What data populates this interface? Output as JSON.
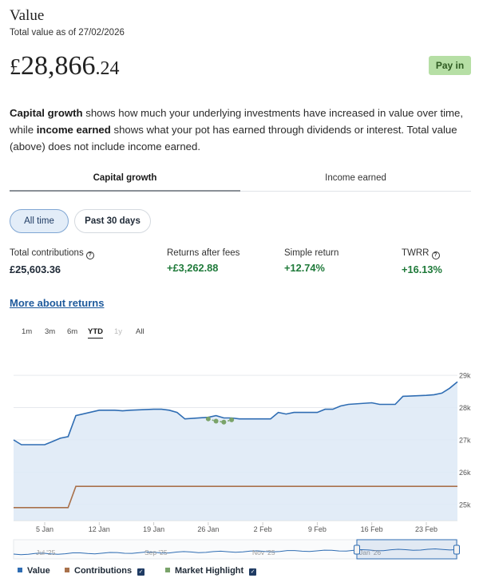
{
  "header": {
    "title": "Value",
    "subtitle": "Total value as of 27/02/2026",
    "currency": "£",
    "amount_main": "28,866",
    "amount_decimal": ".24",
    "pay_in_label": "Pay in"
  },
  "description": {
    "part1_bold": "Capital growth",
    "part1": " shows how much your underlying investments have increased in value over time, while ",
    "part2_bold": "income earned",
    "part2": " shows what your pot has earned through dividends or interest. Total value (above) does not include income earned."
  },
  "tabs": [
    {
      "label": "Capital growth",
      "active": true
    },
    {
      "label": "Income earned",
      "active": false
    }
  ],
  "periods": [
    {
      "label": "All time",
      "selected": true
    },
    {
      "label": "Past 30 days",
      "selected": false
    }
  ],
  "stats": [
    {
      "label": "Total contributions",
      "value": "£25,603.36",
      "info": true
    },
    {
      "label": "Returns after fees",
      "value": "+£3,262.88",
      "info": false
    },
    {
      "label": "Simple return",
      "value": "+12.74%",
      "info": false
    },
    {
      "label": "TWRR",
      "value": "+16.13%",
      "info": true
    }
  ],
  "more_link": "More about returns",
  "chart_ranges": [
    {
      "label": "1m",
      "state": "normal"
    },
    {
      "label": "3m",
      "state": "normal"
    },
    {
      "label": "6m",
      "state": "normal"
    },
    {
      "label": "YTD",
      "state": "selected"
    },
    {
      "label": "1y",
      "state": "disabled"
    },
    {
      "label": "All",
      "state": "normal"
    }
  ],
  "colors": {
    "value_line": "#2f6db3",
    "value_fill": "#dde9f6",
    "contributions_line": "#a9714b",
    "highlight": "#7aa36a"
  },
  "legend": [
    {
      "label": "Value",
      "color": "#2f6db3",
      "checkbox": false
    },
    {
      "label": "Contributions",
      "color": "#a9714b",
      "checkbox": true
    },
    {
      "label": "Market Highlight",
      "color": "#7aa36a",
      "checkbox": true
    }
  ],
  "chart_data": {
    "type": "line",
    "title": "",
    "xlabel": "",
    "ylabel": "",
    "x_ticks": [
      "5 Jan",
      "12 Jan",
      "19 Jan",
      "26 Jan",
      "2 Feb",
      "9 Feb",
      "16 Feb",
      "23 Feb"
    ],
    "y_ticks": [
      "25k",
      "26k",
      "27k",
      "28k",
      "29k"
    ],
    "ylim": [
      24500,
      29300
    ],
    "x_range": [
      "2026-01-01",
      "2026-02-27"
    ],
    "grid": true,
    "series": [
      {
        "name": "Value",
        "x": [
          "2026-01-01",
          "2026-01-02",
          "2026-01-05",
          "2026-01-06",
          "2026-01-07",
          "2026-01-08",
          "2026-01-09",
          "2026-01-12",
          "2026-01-13",
          "2026-01-14",
          "2026-01-15",
          "2026-01-16",
          "2026-01-19",
          "2026-01-20",
          "2026-01-21",
          "2026-01-22",
          "2026-01-23",
          "2026-01-26",
          "2026-01-27",
          "2026-01-28",
          "2026-01-29",
          "2026-01-30",
          "2026-02-02",
          "2026-02-03",
          "2026-02-04",
          "2026-02-05",
          "2026-02-06",
          "2026-02-09",
          "2026-02-10",
          "2026-02-11",
          "2026-02-12",
          "2026-02-13",
          "2026-02-16",
          "2026-02-17",
          "2026-02-18",
          "2026-02-19",
          "2026-02-20",
          "2026-02-23",
          "2026-02-24",
          "2026-02-25",
          "2026-02-26",
          "2026-02-27"
        ],
        "values": [
          27000,
          26850,
          26850,
          26950,
          27050,
          27100,
          27750,
          27920,
          27920,
          27920,
          27900,
          27920,
          27950,
          27950,
          27920,
          27850,
          27650,
          27700,
          27750,
          27680,
          27680,
          27650,
          27650,
          27650,
          27850,
          27800,
          27850,
          27850,
          27950,
          27950,
          28050,
          28100,
          28150,
          28100,
          28100,
          28100,
          28350,
          28380,
          28400,
          28450,
          28600,
          28800
        ]
      },
      {
        "name": "Contributions",
        "x": [
          "2026-01-01",
          "2026-01-08",
          "2026-01-09",
          "2026-02-27"
        ],
        "values": [
          24900,
          24900,
          25560,
          25560
        ]
      },
      {
        "name": "Market Highlight",
        "x": [
          "2026-01-26",
          "2026-01-27",
          "2026-01-28",
          "2026-01-29"
        ],
        "values": [
          27650,
          27580,
          27550,
          27620
        ]
      }
    ],
    "navigator": {
      "labels": [
        "Jul '25",
        "Sep '25",
        "Nov '25",
        "Jan '26"
      ]
    }
  }
}
